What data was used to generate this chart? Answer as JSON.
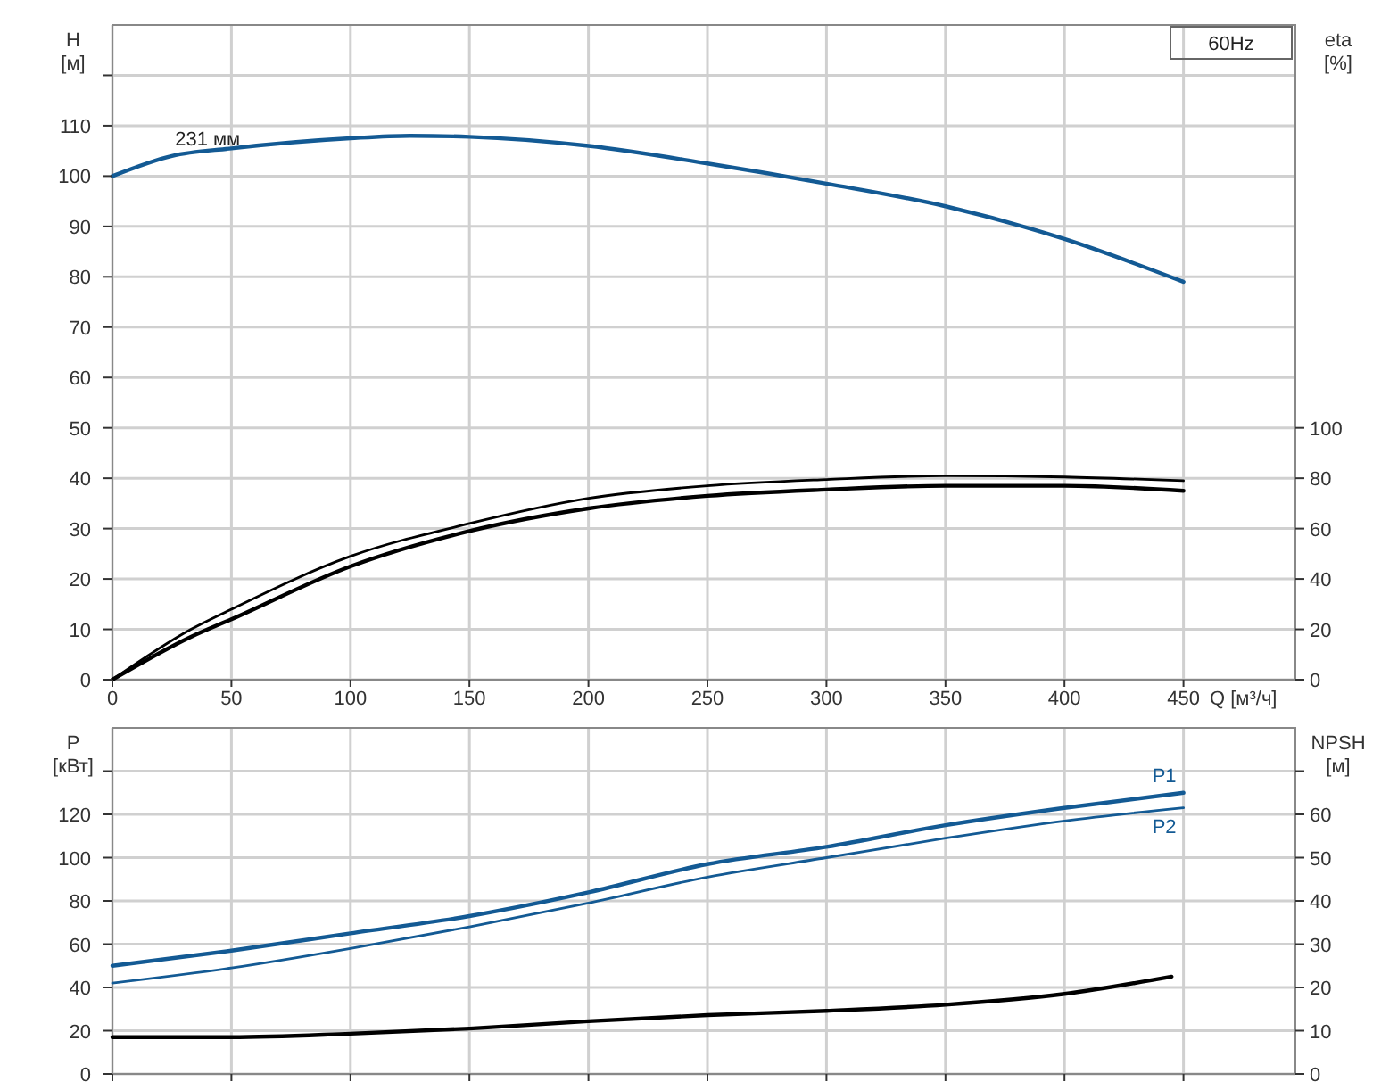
{
  "chart_data": [
    {
      "type": "line",
      "ylabel": "H\n[м]",
      "y2label": "eta\n[%]",
      "xlabel": "Q [м³/ч]",
      "grid": true,
      "xlim": [
        0,
        497
      ],
      "xticks": [
        0,
        50,
        100,
        150,
        200,
        250,
        300,
        350,
        400,
        450
      ],
      "ylim": [
        0,
        130
      ],
      "yticks": [
        0,
        10,
        20,
        30,
        40,
        50,
        60,
        70,
        80,
        90,
        100,
        110,
        {
          "value": 120,
          "label": null
        }
      ],
      "y2lim": [
        0,
        260
      ],
      "y2ticks": [
        0,
        20,
        40,
        60,
        80,
        100
      ],
      "annotations": [
        {
          "text": "231 мм",
          "x": 40,
          "y": 105
        },
        "60Hz"
      ],
      "series": [
        {
          "color": "#135a94",
          "x": [
            0,
            25,
            50,
            100,
            125,
            150,
            200,
            250,
            300,
            350,
            400,
            450
          ],
          "values": [
            100,
            104,
            105.5,
            107.5,
            108,
            107.8,
            106,
            102.5,
            98.5,
            94,
            87.5,
            79
          ]
        },
        {
          "color": "#000000",
          "axis": "y2",
          "x": [
            0,
            33,
            50,
            100,
            150,
            200,
            250,
            300,
            350,
            400,
            450
          ],
          "values": [
            0,
            20,
            28,
            49,
            62,
            72,
            77,
            79.5,
            81,
            80.5,
            79
          ]
        },
        {
          "color": "#000000",
          "axis": "y2",
          "x": [
            0,
            33,
            50,
            100,
            150,
            200,
            250,
            300,
            350,
            400,
            450
          ],
          "values": [
            0,
            17,
            24,
            45,
            59,
            68,
            73,
            75.5,
            77,
            77,
            75
          ]
        }
      ]
    },
    {
      "type": "line",
      "ylabel": "P\n[кВт]",
      "y2label": "NPSH\n[м]",
      "grid": true,
      "tick_labels": "y",
      "xlim": [
        0,
        497
      ],
      "xticks": [
        0,
        50,
        100,
        150,
        200,
        250,
        300,
        350,
        400,
        450
      ],
      "ylim": [
        0,
        160
      ],
      "yticks": [
        0,
        20,
        40,
        60,
        80,
        100,
        120,
        {
          "value": 140,
          "label": null
        }
      ],
      "y2lim": [
        0,
        80
      ],
      "y2ticks": [
        0,
        10,
        20,
        30,
        40,
        50,
        60,
        {
          "value": 70,
          "label": null
        }
      ],
      "series": [
        {
          "name": "P1",
          "color": "#135a94",
          "x": [
            0,
            50,
            100,
            150,
            200,
            250,
            300,
            350,
            400,
            450
          ],
          "values": [
            50,
            57,
            65,
            73,
            84,
            97,
            105,
            115,
            123,
            130
          ]
        },
        {
          "name": "P2",
          "color": "#135a94",
          "x": [
            0,
            50,
            100,
            150,
            200,
            250,
            300,
            350,
            400,
            450
          ],
          "values": [
            42,
            49,
            58,
            68,
            79,
            91,
            100,
            109,
            117,
            123
          ]
        },
        {
          "color": "#000000",
          "axis": "y2",
          "x": [
            0,
            50,
            100,
            150,
            200,
            250,
            300,
            350,
            400,
            445
          ],
          "values": [
            8.5,
            8.5,
            9.3,
            10.5,
            12.2,
            13.6,
            14.6,
            16,
            18.5,
            22.5
          ]
        }
      ]
    }
  ]
}
